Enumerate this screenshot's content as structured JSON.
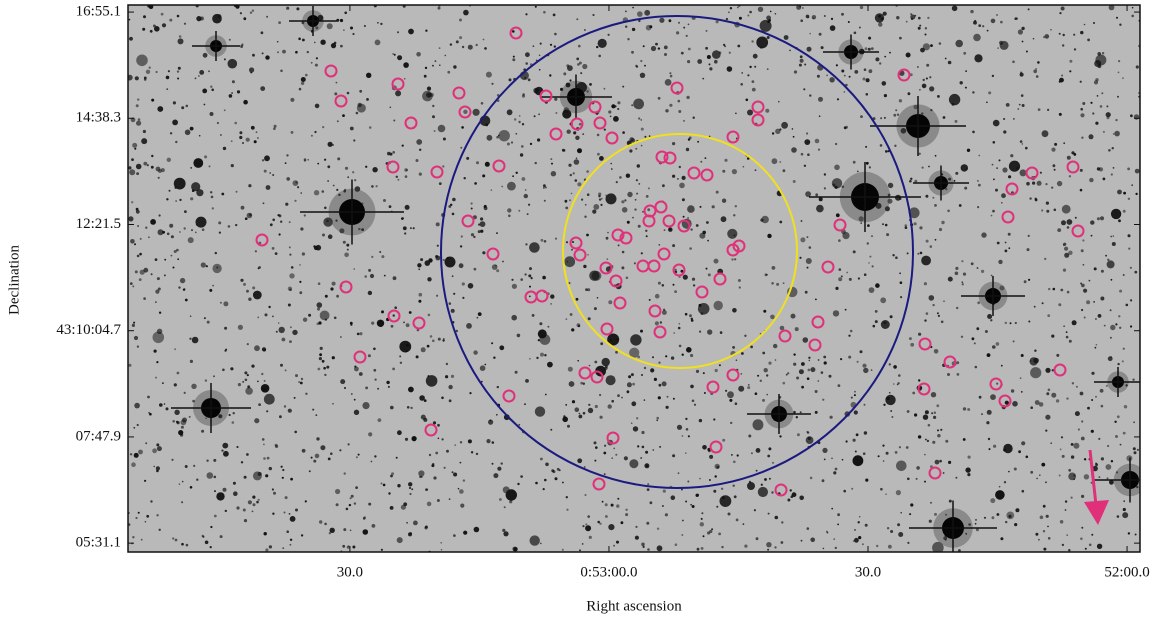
{
  "chart_data": {
    "type": "image",
    "xlabel": "Right ascension",
    "ylabel": "Declination",
    "xlim": [
      3235.7,
      3118.5
    ],
    "ylim": [
      43.0888,
      43.2845
    ],
    "xticks": [
      {
        "value": 3210,
        "label": "30.0"
      },
      {
        "value": 3180,
        "label": "0:53:00.0"
      },
      {
        "value": 3150,
        "label": "30.0"
      },
      {
        "value": 3120,
        "label": "52:00.0"
      }
    ],
    "yticks": [
      {
        "value": 43.281972,
        "label": "16:55.1"
      },
      {
        "value": 43.243972,
        "label": "14:38.3"
      },
      {
        "value": 43.205972,
        "label": "12:21.5"
      },
      {
        "value": 43.167972,
        "label": "43:10:04.7"
      },
      {
        "value": 43.129972,
        "label": "07:47.9"
      },
      {
        "value": 43.091972,
        "label": "05:31.1"
      }
    ]
  }
}
